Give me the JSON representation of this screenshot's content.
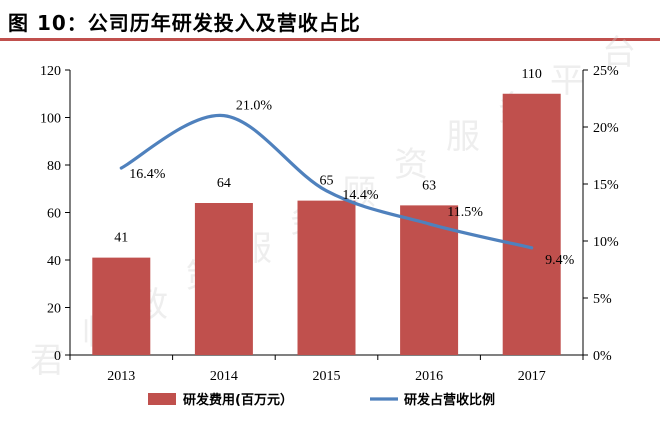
{
  "header": {
    "title": "图 10：公司历年研发投入及营收占比"
  },
  "watermark": [
    "君",
    "临",
    "政",
    "策",
    "服",
    "务",
    "顾",
    "资",
    "服",
    "务",
    "平",
    "台"
  ],
  "chart_data": {
    "type": "bar",
    "categories": [
      "2013",
      "2014",
      "2015",
      "2016",
      "2017"
    ],
    "series": [
      {
        "name": "研发费用(百万元）",
        "kind": "bar",
        "axis": "left",
        "color": "#c0504d",
        "values": [
          41,
          64,
          65,
          63,
          110
        ],
        "labels": [
          "41",
          "64",
          "65",
          "63",
          "110"
        ]
      },
      {
        "name": "研发占营收比例",
        "kind": "line",
        "axis": "right",
        "color": "#4f81bd",
        "values": [
          16.4,
          21.0,
          14.4,
          11.5,
          9.4
        ],
        "labels": [
          "16.4%",
          "21.0%",
          "14.4%",
          "11.5%",
          "9.4%"
        ]
      }
    ],
    "y_left": {
      "range": [
        0,
        120
      ],
      "ticks": [
        "0",
        "20",
        "40",
        "60",
        "80",
        "100",
        "120"
      ]
    },
    "y_right": {
      "range": [
        0,
        25
      ],
      "ticks": [
        "0%",
        "5%",
        "10%",
        "15%",
        "20%",
        "25%"
      ]
    },
    "grid": false,
    "legend_position": "bottom"
  }
}
